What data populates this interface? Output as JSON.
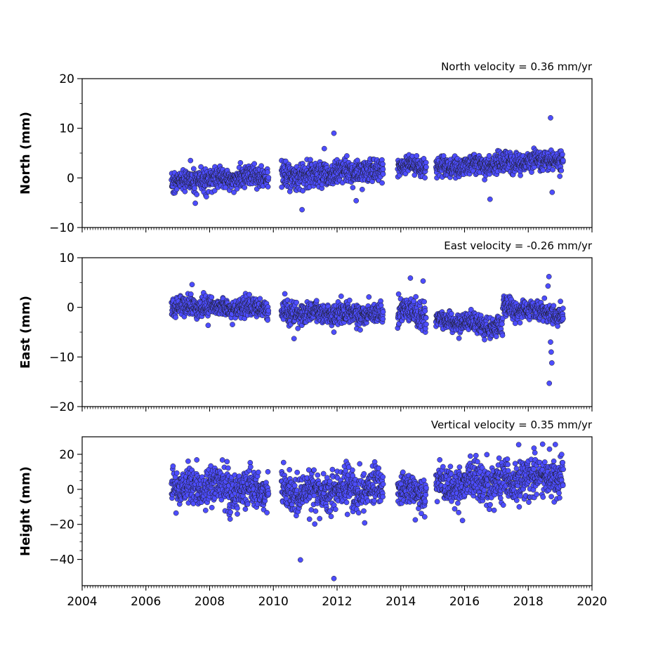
{
  "chart_data": [
    {
      "type": "scatter",
      "title": "North velocity = 0.36 mm/yr",
      "ylabel": "North (mm)",
      "xlim": [
        2004,
        2020
      ],
      "ylim": [
        -10,
        20
      ],
      "yticks": [
        -10,
        0,
        10,
        20
      ],
      "ytick_labels": [
        "−10",
        "0",
        "10",
        "20"
      ],
      "show_xtick_labels": false,
      "marker_color": "#4d4dff",
      "series": [
        {
          "segments": [
            {
              "t0": 2006.8,
              "t1": 2009.85,
              "y0": -0.8,
              "y1": 0.4,
              "spread": 1.1
            },
            {
              "t0": 2010.25,
              "t1": 2013.45,
              "y0": 0.2,
              "y1": 1.8,
              "spread": 1.3
            },
            {
              "t0": 2013.9,
              "t1": 2014.8,
              "y0": 2.2,
              "y1": 2.5,
              "spread": 0.9
            },
            {
              "t0": 2015.1,
              "t1": 2019.1,
              "y0": 2.0,
              "y1": 3.6,
              "spread": 1.0
            }
          ],
          "outliers": [
            [
              2007.55,
              -5.1
            ],
            [
              2010.9,
              -6.4
            ],
            [
              2011.9,
              9.0
            ],
            [
              2012.6,
              -4.6
            ],
            [
              2016.8,
              -4.3
            ],
            [
              2018.7,
              12.1
            ],
            [
              2018.75,
              -2.9
            ],
            [
              2007.4,
              3.5
            ],
            [
              2011.6,
              5.9
            ]
          ]
        }
      ]
    },
    {
      "type": "scatter",
      "title": "East velocity = -0.26 mm/yr",
      "ylabel": "East (mm)",
      "xlim": [
        2004,
        2020
      ],
      "ylim": [
        -20,
        10
      ],
      "yticks": [
        -20,
        -10,
        0,
        10
      ],
      "ytick_labels": [
        "−20",
        "−10",
        "0",
        "10"
      ],
      "show_xtick_labels": false,
      "marker_color": "#4d4dff",
      "series": [
        {
          "segments": [
            {
              "t0": 2006.8,
              "t1": 2009.85,
              "y0": 0.3,
              "y1": -0.3,
              "spread": 1.0
            },
            {
              "t0": 2010.25,
              "t1": 2013.45,
              "y0": -1.0,
              "y1": -1.5,
              "spread": 1.1
            },
            {
              "t0": 2013.9,
              "t1": 2014.8,
              "y0": -0.5,
              "y1": -2.0,
              "spread": 1.5
            },
            {
              "t0": 2015.1,
              "t1": 2017.2,
              "y0": -2.5,
              "y1": -4.0,
              "spread": 1.0
            },
            {
              "t0": 2017.2,
              "t1": 2019.1,
              "y0": 0.0,
              "y1": -1.5,
              "spread": 1.0
            }
          ],
          "outliers": [
            [
              2014.3,
              5.9
            ],
            [
              2014.7,
              5.3
            ],
            [
              2018.65,
              6.2
            ],
            [
              2018.62,
              4.3
            ],
            [
              2018.72,
              -9.0
            ],
            [
              2018.74,
              -11.2
            ],
            [
              2018.66,
              -15.3
            ],
            [
              2010.65,
              -6.3
            ],
            [
              2011.9,
              -5.0
            ],
            [
              2007.45,
              4.6
            ],
            [
              2018.7,
              -7.0
            ]
          ]
        }
      ]
    },
    {
      "type": "scatter",
      "title": "Vertical velocity = 0.35 mm/yr",
      "ylabel": "Height (mm)",
      "xlim": [
        2004,
        2020
      ],
      "ylim": [
        -55,
        30
      ],
      "yticks": [
        -40,
        -20,
        0,
        20
      ],
      "ytick_labels": [
        "−40",
        "−20",
        "0",
        "20"
      ],
      "show_xtick_labels": true,
      "xticks": [
        2004,
        2006,
        2008,
        2010,
        2012,
        2014,
        2016,
        2018,
        2020
      ],
      "xtick_labels": [
        "2004",
        "2006",
        "2008",
        "2010",
        "2012",
        "2014",
        "2016",
        "2018",
        "2020"
      ],
      "marker_color": "#4d4dff",
      "series": [
        {
          "segments": [
            {
              "t0": 2006.8,
              "t1": 2009.85,
              "y0": 2.0,
              "y1": 0.0,
              "spread": 5.5
            },
            {
              "t0": 2010.25,
              "t1": 2013.45,
              "y0": -4.0,
              "y1": 2.0,
              "spread": 5.5
            },
            {
              "t0": 2013.9,
              "t1": 2014.8,
              "y0": -1.0,
              "y1": -3.0,
              "spread": 4.5
            },
            {
              "t0": 2015.1,
              "t1": 2019.1,
              "y0": 2.0,
              "y1": 8.0,
              "spread": 6.0
            }
          ],
          "outliers": [
            [
              2010.85,
              -40.3
            ],
            [
              2011.9,
              -50.9
            ],
            [
              2011.3,
              -19.8
            ],
            [
              2017.7,
              25.5
            ],
            [
              2018.45,
              25.8
            ],
            [
              2018.85,
              25.6
            ],
            [
              2016.7,
              19.8
            ]
          ]
        }
      ]
    }
  ]
}
